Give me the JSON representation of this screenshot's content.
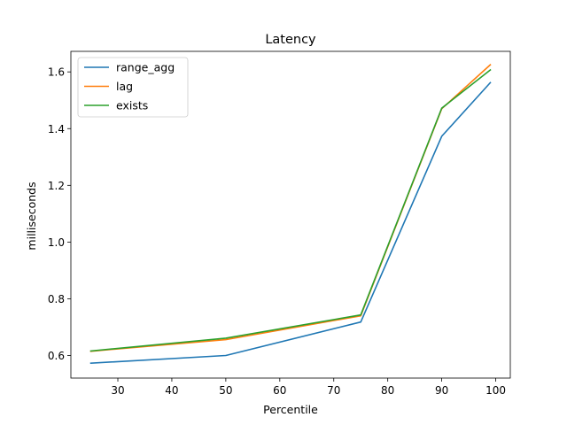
{
  "chart_data": {
    "type": "line",
    "title": "Latency",
    "xlabel": "Percentile",
    "ylabel": "milliseconds",
    "x": [
      25,
      50,
      75,
      90,
      99
    ],
    "series": [
      {
        "name": "range_agg",
        "color": "#1f77b4",
        "values": [
          0.573,
          0.6,
          0.718,
          1.373,
          1.562
        ]
      },
      {
        "name": "lag",
        "color": "#ff7f0e",
        "values": [
          0.615,
          0.656,
          0.74,
          1.47,
          1.625
        ]
      },
      {
        "name": "exists",
        "color": "#2ca02c",
        "values": [
          0.616,
          0.661,
          0.743,
          1.472,
          1.607
        ]
      }
    ],
    "xlim": [
      21.3,
      102.7
    ],
    "ylim": [
      0.5204,
      1.6724
    ],
    "xticks": [
      30,
      40,
      50,
      60,
      70,
      80,
      90,
      100
    ],
    "yticks": [
      0.6,
      0.8,
      1.0,
      1.2,
      1.4,
      1.6
    ],
    "ytick_labels": [
      "0.6",
      "0.8",
      "1.0",
      "1.2",
      "1.4",
      "1.6"
    ],
    "grid": false,
    "legend_position": "top-left"
  }
}
